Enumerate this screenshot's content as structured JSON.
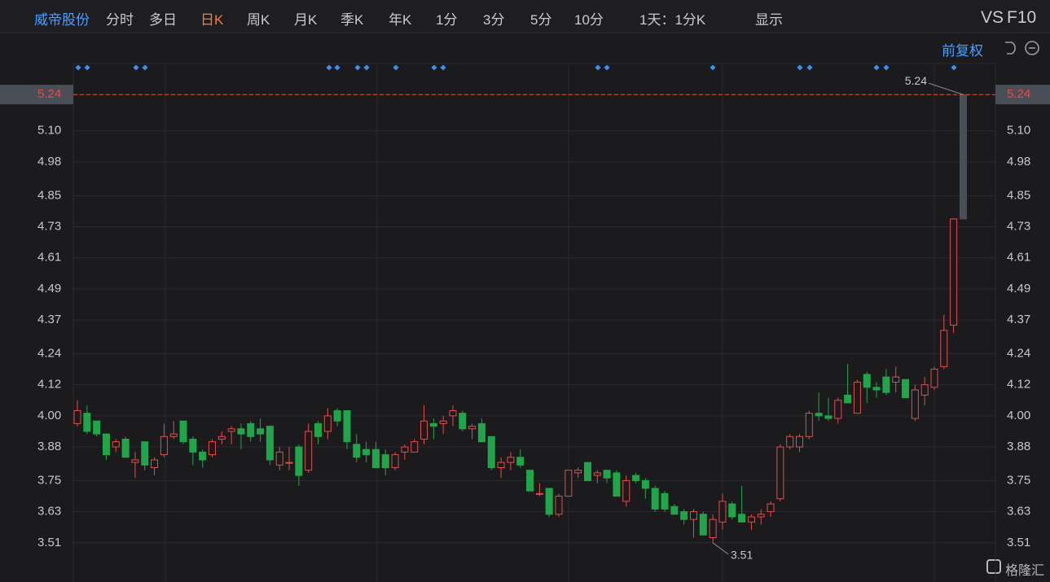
{
  "toolbar": {
    "stock": "威帝股份",
    "periods": [
      "分时",
      "多日",
      "日K",
      "周K",
      "月K",
      "季K",
      "年K",
      "1分",
      "3分",
      "5分",
      "10分"
    ],
    "interval": "1天：1分K",
    "display": "显示",
    "vs": "VS",
    "f10": "F10",
    "adjust": "前复权"
  },
  "watermark": "格隆汇",
  "chart_data": {
    "type": "candlestick",
    "categories": [
      null,
      null,
      null,
      null,
      null,
      null,
      null,
      null,
      null,
      null,
      null,
      null,
      null,
      null,
      null,
      null,
      null,
      null,
      null,
      null,
      null,
      null,
      null,
      null,
      null,
      null,
      null,
      null,
      null,
      null,
      null,
      null,
      null,
      null,
      null,
      null,
      null,
      null,
      null,
      null,
      null,
      null,
      null,
      null,
      null,
      null,
      null,
      null,
      null,
      null,
      null,
      null,
      null,
      null,
      null,
      null,
      null,
      null,
      null,
      null,
      null,
      null,
      null,
      null,
      null,
      null,
      null,
      null,
      null,
      null,
      null,
      null,
      null,
      null,
      null,
      null,
      null,
      null,
      null,
      null,
      null,
      null,
      null,
      null,
      null,
      null,
      null,
      null,
      null,
      null,
      null,
      null,
      null
    ],
    "open": [
      3.97,
      4.01,
      3.98,
      3.93,
      3.88,
      3.91,
      3.82,
      3.9,
      3.8,
      3.85,
      3.92,
      3.98,
      3.91,
      3.86,
      3.85,
      3.91,
      3.94,
      3.95,
      3.97,
      3.95,
      3.96,
      3.81,
      3.82,
      3.88,
      3.79,
      3.97,
      3.94,
      4.02,
      4.02,
      3.89,
      3.87,
      3.87,
      3.85,
      3.8,
      3.86,
      3.86,
      3.91,
      3.97,
      3.97,
      4.0,
      4.01,
      3.95,
      3.97,
      3.92,
      3.8,
      3.82,
      3.84,
      3.79,
      3.7,
      3.72,
      3.62,
      3.69,
      3.78,
      3.82,
      3.77,
      3.79,
      3.78,
      3.67,
      3.77,
      3.75,
      3.72,
      3.7,
      3.65,
      3.63,
      3.6,
      3.62,
      3.53,
      3.59,
      3.66,
      3.62,
      3.59,
      3.61,
      3.63,
      3.68,
      3.88,
      3.88,
      3.92,
      4.01,
      4.0,
      3.99,
      4.08,
      4.01,
      4.16,
      4.11,
      4.15,
      4.13,
      4.14,
      3.99,
      4.08,
      4.11,
      4.19,
      4.35,
      4.76
    ],
    "high": [
      4.06,
      4.04,
      3.98,
      3.93,
      3.91,
      3.92,
      3.86,
      3.9,
      3.84,
      3.97,
      3.98,
      3.98,
      3.92,
      3.87,
      3.91,
      3.94,
      3.96,
      3.97,
      3.98,
      3.99,
      3.96,
      3.88,
      3.88,
      3.89,
      3.97,
      3.98,
      4.03,
      4.03,
      4.02,
      3.93,
      3.9,
      3.9,
      3.87,
      3.86,
      3.89,
      3.91,
      4.04,
      3.99,
      4.0,
      4.04,
      4.02,
      3.97,
      3.99,
      3.92,
      3.84,
      3.86,
      3.87,
      3.79,
      3.74,
      3.72,
      3.7,
      3.79,
      3.8,
      3.82,
      3.79,
      3.79,
      3.79,
      3.77,
      3.78,
      3.76,
      3.73,
      3.71,
      3.66,
      3.64,
      3.64,
      3.63,
      3.62,
      3.7,
      3.67,
      3.73,
      3.62,
      3.64,
      3.67,
      3.89,
      3.93,
      3.93,
      4.02,
      4.09,
      4.07,
      4.07,
      4.2,
      4.14,
      4.17,
      4.13,
      4.18,
      4.19,
      4.14,
      4.12,
      4.15,
      4.19,
      4.39,
      4.76,
      5.24
    ],
    "low": [
      3.96,
      3.93,
      3.92,
      3.83,
      3.86,
      3.84,
      3.76,
      3.79,
      3.77,
      3.84,
      3.91,
      3.89,
      3.81,
      3.8,
      3.84,
      3.89,
      3.89,
      3.87,
      3.9,
      3.9,
      3.81,
      3.79,
      3.79,
      3.73,
      3.78,
      3.89,
      3.91,
      3.96,
      3.87,
      3.82,
      3.82,
      3.8,
      3.77,
      3.79,
      3.83,
      3.86,
      3.89,
      3.91,
      3.93,
      3.96,
      3.94,
      3.91,
      3.9,
      3.79,
      3.76,
      3.79,
      3.8,
      3.71,
      3.69,
      3.61,
      3.61,
      3.69,
      3.76,
      3.75,
      3.74,
      3.74,
      3.69,
      3.65,
      3.74,
      3.68,
      3.63,
      3.63,
      3.62,
      3.58,
      3.53,
      3.54,
      3.51,
      3.56,
      3.6,
      3.59,
      3.56,
      3.58,
      3.61,
      3.67,
      3.87,
      3.86,
      3.91,
      3.98,
      3.98,
      3.97,
      4.05,
      4.01,
      4.05,
      4.07,
      4.08,
      4.09,
      4.07,
      3.98,
      4.04,
      4.1,
      4.18,
      4.32,
      4.76
    ],
    "close": [
      4.02,
      3.94,
      3.93,
      3.85,
      3.9,
      3.84,
      3.83,
      3.81,
      3.83,
      3.92,
      3.93,
      3.9,
      3.86,
      3.83,
      3.9,
      3.92,
      3.95,
      3.93,
      3.92,
      3.93,
      3.83,
      3.86,
      3.82,
      3.77,
      3.94,
      3.92,
      4.0,
      3.98,
      3.9,
      3.84,
      3.85,
      3.8,
      3.8,
      3.85,
      3.88,
      3.9,
      3.98,
      3.96,
      3.98,
      4.02,
      3.95,
      3.96,
      3.9,
      3.8,
      3.82,
      3.84,
      3.81,
      3.71,
      3.7,
      3.62,
      3.69,
      3.79,
      3.79,
      3.75,
      3.78,
      3.76,
      3.69,
      3.75,
      3.75,
      3.72,
      3.64,
      3.64,
      3.62,
      3.6,
      3.63,
      3.54,
      3.6,
      3.67,
      3.61,
      3.59,
      3.61,
      3.62,
      3.66,
      3.88,
      3.92,
      3.92,
      4.01,
      4.0,
      3.99,
      4.06,
      4.05,
      4.13,
      4.11,
      4.1,
      4.09,
      4.15,
      4.07,
      4.1,
      4.12,
      4.18,
      4.33,
      4.76,
      5.24
    ],
    "up_color": "#e84a4a",
    "down_color": "#1fa64a",
    "last_candle_color": "#4a4f57",
    "ylim": [
      3.39,
      5.36
    ],
    "yticks": [
      5.24,
      {
        "value": 5.1,
        "label": "5.10"
      },
      4.98,
      4.85,
      4.73,
      4.61,
      4.49,
      4.37,
      4.24,
      4.12,
      {
        "value": 4.0,
        "label": "4.00"
      },
      3.88,
      3.75,
      3.63,
      3.51
    ],
    "grid": true,
    "price_line": 5.24,
    "price_line_color": "#e0553c",
    "high_label": 5.24,
    "low_label": 3.51
  }
}
